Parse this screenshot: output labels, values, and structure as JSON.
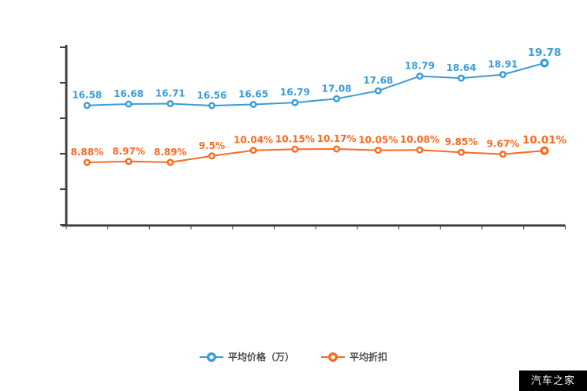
{
  "chart_data": {
    "type": "line",
    "title": "",
    "grid": false,
    "legend_position": "bottom",
    "x_axis_tick_count": 13,
    "y_axis_tick_count": 6,
    "series": [
      {
        "name": "平均价格（万）",
        "color": "#3b9cd9",
        "values": [
          16.58,
          16.68,
          16.71,
          16.56,
          16.65,
          16.79,
          17.08,
          17.68,
          18.79,
          18.64,
          18.91,
          19.78
        ],
        "labels": [
          "16.58",
          "16.68",
          "16.71",
          "16.56",
          "16.65",
          "16.79",
          "17.08",
          "17.68",
          "18.79",
          "18.64",
          "18.91",
          "19.78"
        ]
      },
      {
        "name": "平均折扣",
        "color": "#fb6a20",
        "values": [
          8.88,
          8.97,
          8.89,
          9.5,
          10.04,
          10.15,
          10.17,
          10.05,
          10.08,
          9.85,
          9.67,
          10.01
        ],
        "labels": [
          "8.88%",
          "8.97%",
          "8.89%",
          "9.5%",
          "10.04%",
          "10.15%",
          "10.17%",
          "10.05%",
          "10.08%",
          "9.85%",
          "9.67%",
          "10.01%"
        ]
      }
    ]
  },
  "colors": {
    "axis": "#3f3f3f"
  },
  "watermark": {
    "label": "汽车之家"
  }
}
